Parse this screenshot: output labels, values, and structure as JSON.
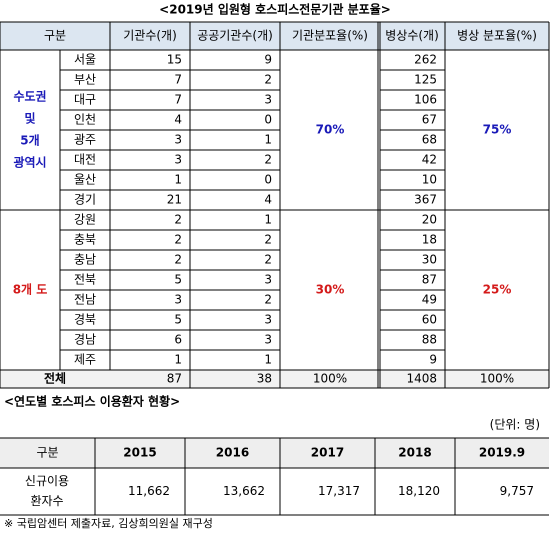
{
  "table1": {
    "title": "<2019년 입원형 호스피스전문기관 분포율>",
    "header": [
      "구분",
      "기관수(개)",
      "공공기관수(개)",
      "기관분포율(%)",
      "병상수(개)",
      "병상 분포율(%)"
    ],
    "groups": [
      {
        "label": [
          "수도권",
          "및",
          "5개",
          "광역시"
        ],
        "color": "#1a1ab8",
        "institution_rate": "70%",
        "bed_rate": "75%",
        "rows": [
          [
            "서울",
            "15",
            "9",
            "262"
          ],
          [
            "부산",
            "7",
            "2",
            "125"
          ],
          [
            "대구",
            "7",
            "3",
            "106"
          ],
          [
            "인천",
            "4",
            "0",
            "67"
          ],
          [
            "광주",
            "3",
            "1",
            "68"
          ],
          [
            "대전",
            "3",
            "2",
            "42"
          ],
          [
            "울산",
            "1",
            "0",
            "10"
          ],
          [
            "경기",
            "21",
            "4",
            "367"
          ]
        ]
      },
      {
        "label": [
          "8개 도"
        ],
        "color": "#d41a1a",
        "institution_rate": "30%",
        "bed_rate": "25%",
        "rows": [
          [
            "강원",
            "2",
            "1",
            "20"
          ],
          [
            "충북",
            "2",
            "2",
            "18"
          ],
          [
            "충남",
            "2",
            "2",
            "30"
          ],
          [
            "전북",
            "5",
            "3",
            "87"
          ],
          [
            "전남",
            "3",
            "2",
            "49"
          ],
          [
            "경북",
            "5",
            "3",
            "60"
          ],
          [
            "경남",
            "6",
            "3",
            "88"
          ],
          [
            "제주",
            "1",
            "1",
            "9"
          ]
        ]
      }
    ],
    "total": [
      "전체",
      "87",
      "38",
      "100%",
      "1408",
      "100%"
    ]
  },
  "table2": {
    "title": "<연도별 호스피스 이용환자 현황>",
    "unit": "(단위: 명)",
    "header": [
      "구분",
      "2015",
      "2016",
      "2017",
      "2018",
      "2019.9"
    ],
    "label": [
      "신규이용",
      "환자수"
    ],
    "values": [
      "11,662",
      "13,662",
      "17,317",
      "18,120",
      "9,757"
    ],
    "note": "※ 국립암센터 제출자료, 김상희의원실 재구성"
  }
}
